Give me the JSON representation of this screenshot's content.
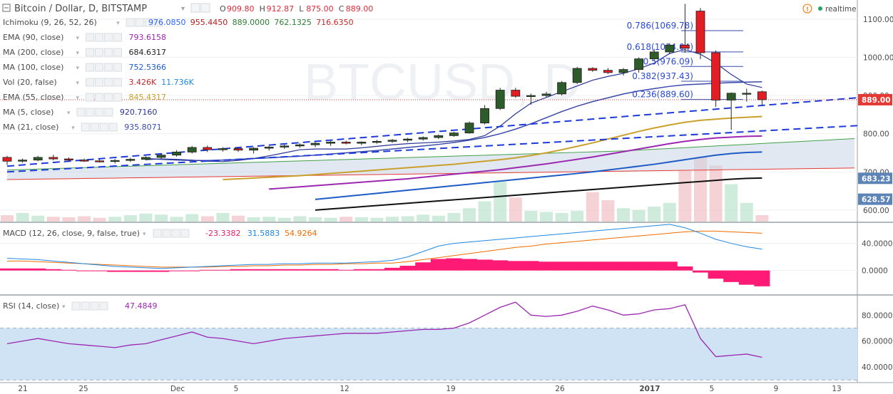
{
  "header": {
    "symbol": "Bitcoin / Dollar, D, BITSTAMP",
    "ohlc": [
      {
        "label": "O",
        "value": "909.80"
      },
      {
        "label": "H",
        "value": "912.87"
      },
      {
        "label": "L",
        "value": "875.00"
      },
      {
        "label": "C",
        "value": "889.00"
      }
    ],
    "realtime": "realtime",
    "ohlc_color": "#e0293a",
    "text_color": "#4a4a4a"
  },
  "indicators": [
    {
      "name": "Ichimoku (9, 26, 52, 26)",
      "values": [
        {
          "v": "976.0850",
          "color": "#2962ff"
        },
        {
          "v": "955.4450",
          "color": "#b71c1c"
        },
        {
          "v": "889.0000",
          "color": "#2e7d32"
        },
        {
          "v": "762.1325",
          "color": "#2e7d32"
        },
        {
          "v": "716.6350",
          "color": "#c62828"
        }
      ]
    },
    {
      "name": "EMA (90, close)",
      "values": [
        {
          "v": "793.6158",
          "color": "#9c27b0"
        }
      ]
    },
    {
      "name": "MA (200, close)",
      "values": [
        {
          "v": "684.6317",
          "color": "#222222"
        }
      ]
    },
    {
      "name": "MA (100, close)",
      "values": [
        {
          "v": "752.5366",
          "color": "#1e5bc6"
        }
      ]
    },
    {
      "name": "Vol (20, false)",
      "values": [
        {
          "v": "3.426K",
          "color": "#c62828"
        },
        {
          "v": "11.736K",
          "color": "#1e88e5"
        }
      ]
    },
    {
      "name": "EMA (55, close)",
      "values": [
        {
          "v": "845.4317",
          "color": "#c9a02a"
        }
      ]
    },
    {
      "name": "MA (5, close)",
      "values": [
        {
          "v": "920.7160",
          "color": "#283593"
        }
      ]
    },
    {
      "name": "MA (21, close)",
      "values": [
        {
          "v": "935.8071",
          "color": "#3949ab"
        }
      ]
    }
  ],
  "price_badges": [
    {
      "text": "889.00",
      "color": "#e53935"
    },
    {
      "text": "683.23",
      "color": "#5c84b6"
    },
    {
      "text": "628.57",
      "color": "#5c84b6"
    }
  ],
  "macd_legend": {
    "name": "MACD (12, 26, close, 9, false, true)",
    "values": [
      {
        "v": "-23.3382",
        "color": "#e91e63"
      },
      {
        "v": "31.5883",
        "color": "#1e88e5"
      },
      {
        "v": "54.9264",
        "color": "#ef6c00"
      }
    ]
  },
  "rsi_legend": {
    "name": "RSI (14, close)",
    "values": [
      {
        "v": "47.4849",
        "color": "#9c27b0"
      }
    ]
  },
  "watermark": "BTCUSD, D",
  "chart_data": {
    "type": "candlestick",
    "title": "Bitcoin / Dollar, D, BITSTAMP",
    "price_axis": [
      1100,
      1000,
      900,
      800,
      700,
      600
    ],
    "price_axis_labels": [
      "1100.00",
      "1000.00",
      "900.00",
      "800.00",
      "700.00",
      "600.00"
    ],
    "ylim": [
      570,
      1150
    ],
    "date_labels": [
      "21",
      "25",
      "Dec",
      "5",
      "12",
      "19",
      "26",
      "2017",
      "5",
      "9",
      "13"
    ],
    "candles": [
      [
        738,
        742,
        718,
        728
      ],
      [
        728,
        735,
        724,
        731
      ],
      [
        731,
        742,
        728,
        738
      ],
      [
        738,
        745,
        730,
        734
      ],
      [
        734,
        738,
        728,
        731
      ],
      [
        731,
        735,
        726,
        729
      ],
      [
        729,
        733,
        725,
        728
      ],
      [
        728,
        734,
        722,
        730
      ],
      [
        730,
        737,
        726,
        733
      ],
      [
        733,
        741,
        730,
        738
      ],
      [
        738,
        748,
        734,
        744
      ],
      [
        744,
        757,
        740,
        752
      ],
      [
        752,
        768,
        748,
        764
      ],
      [
        764,
        769,
        752,
        758
      ],
      [
        758,
        765,
        753,
        761
      ],
      [
        761,
        764,
        752,
        757
      ],
      [
        757,
        765,
        748,
        762
      ],
      [
        762,
        768,
        756,
        765
      ],
      [
        765,
        772,
        760,
        768
      ],
      [
        768,
        775,
        763,
        771
      ],
      [
        771,
        778,
        765,
        775
      ],
      [
        775,
        781,
        768,
        778
      ],
      [
        778,
        782,
        772,
        775
      ],
      [
        775,
        780,
        770,
        778
      ],
      [
        778,
        784,
        774,
        780
      ],
      [
        780,
        786,
        776,
        783
      ],
      [
        783,
        789,
        778,
        786
      ],
      [
        786,
        793,
        782,
        790
      ],
      [
        790,
        798,
        786,
        795
      ],
      [
        795,
        805,
        792,
        802
      ],
      [
        802,
        832,
        800,
        828
      ],
      [
        828,
        875,
        824,
        866
      ],
      [
        866,
        920,
        862,
        914
      ],
      [
        914,
        920,
        894,
        898
      ],
      [
        898,
        905,
        876,
        900
      ],
      [
        900,
        910,
        896,
        904
      ],
      [
        904,
        938,
        900,
        934
      ],
      [
        934,
        975,
        930,
        971
      ],
      [
        971,
        974,
        962,
        966
      ],
      [
        966,
        972,
        956,
        960
      ],
      [
        960,
        972,
        952,
        968
      ],
      [
        968,
        1000,
        960,
        996
      ],
      [
        996,
        1022,
        990,
        1014
      ],
      [
        1014,
        1037,
        1008,
        1032
      ],
      [
        1032,
        1140,
        1012,
        1024
      ],
      [
        1121,
        1129,
        995,
        1012
      ],
      [
        1012,
        1018,
        870,
        888
      ],
      [
        888,
        908,
        810,
        906
      ],
      [
        906,
        918,
        884,
        906
      ],
      [
        909.8,
        912.87,
        875,
        889
      ]
    ],
    "ma5": [
      732,
      734,
      733,
      731,
      728,
      727,
      730,
      735,
      742,
      750,
      758,
      760,
      760,
      760,
      763,
      767,
      771,
      774,
      776,
      778,
      781,
      785,
      795,
      820,
      852,
      880,
      895,
      910,
      925,
      940,
      950,
      958,
      970,
      985,
      1010,
      1020,
      1008,
      985,
      955,
      930,
      921
    ],
    "ma21": [
      735,
      733,
      731,
      730,
      730,
      731,
      733,
      735,
      737,
      739,
      741,
      744,
      747,
      750,
      753,
      756,
      760,
      764,
      768,
      772,
      777,
      783,
      790,
      800,
      812,
      826,
      842,
      858,
      872,
      884,
      894,
      904,
      912,
      918,
      924,
      928,
      930,
      932,
      934,
      935,
      936
    ],
    "ema55": [
      680,
      682,
      684,
      686,
      688,
      690,
      693,
      696,
      699,
      702,
      705,
      708,
      711,
      714,
      717,
      720,
      724,
      728,
      732,
      737,
      743,
      750,
      758,
      767,
      776,
      786,
      796,
      806,
      815,
      823,
      830,
      835,
      838,
      841,
      843,
      845
    ],
    "ema90": [
      655,
      658,
      661,
      664,
      667,
      670,
      673,
      676,
      679,
      682,
      686,
      690,
      694,
      698,
      702,
      706,
      711,
      716,
      721,
      727,
      733,
      739,
      746,
      753,
      760,
      767,
      774,
      780,
      785,
      789,
      791,
      793,
      794
    ],
    "ma100": [
      628,
      632,
      636,
      640,
      644,
      648,
      652,
      656,
      660,
      664,
      668,
      672,
      676,
      680,
      684,
      688,
      692,
      696,
      700,
      705,
      710,
      715,
      720,
      726,
      732,
      738,
      744,
      748,
      751,
      752
    ],
    "ma200": [
      600,
      603,
      606,
      609,
      612,
      615,
      618,
      621,
      624,
      627,
      630,
      633,
      636,
      639,
      642,
      645,
      648,
      651,
      654,
      657,
      660,
      663,
      666,
      669,
      672,
      675,
      678,
      681,
      683,
      684
    ],
    "trendlines": [
      {
        "from": [
          0,
          700
        ],
        "to": [
          57,
          825
        ]
      },
      {
        "from": [
          0,
          715
        ],
        "to": [
          57,
          900
        ]
      }
    ],
    "fibonacci": [
      {
        "label": "0.786(1069.78)",
        "price": 1069.78
      },
      {
        "label": "0.618(1014.04)",
        "price": 1014.04
      },
      {
        "label": "0.5(976.09)",
        "price": 976.09
      },
      {
        "label": "0.382(937.43)",
        "price": 937.43
      },
      {
        "label": "0.236(889.60)",
        "price": 889.6
      }
    ],
    "volume": [
      1.2,
      1.6,
      1.1,
      0.9,
      0.8,
      1.0,
      0.7,
      0.9,
      1.2,
      1.5,
      1.3,
      0.9,
      1.4,
      1.0,
      1.6,
      1.1,
      0.8,
      0.9,
      0.7,
      1.0,
      0.8,
      0.7,
      0.9,
      0.8,
      0.7,
      0.9,
      1.0,
      1.3,
      1.1,
      1.6,
      2.5,
      3.8,
      7.5,
      4.5,
      2.0,
      1.8,
      1.6,
      2.0,
      5.5,
      4.0,
      2.5,
      2.2,
      2.8,
      3.5,
      9.5,
      12.0,
      10.5,
      7.0,
      3.5,
      1.2
    ],
    "macd": {
      "ylim": [
        -35,
        70
      ],
      "axis": [
        40,
        0
      ],
      "axis_labels": [
        "40.0000",
        "0.0000"
      ],
      "macd_line": [
        18,
        17,
        16,
        14,
        12,
        10,
        8,
        6,
        5,
        4,
        3,
        4,
        5,
        6,
        7,
        8,
        9,
        9,
        10,
        10,
        11,
        11,
        11,
        12,
        13,
        15,
        20,
        28,
        36,
        40,
        42,
        44,
        46,
        48,
        50,
        52,
        54,
        56,
        58,
        60,
        62,
        64,
        66,
        68,
        63,
        55,
        46,
        40,
        35,
        31.6
      ],
      "signal_line": [
        14,
        14,
        13,
        12,
        11,
        10,
        9,
        8,
        7,
        6,
        5,
        5,
        5,
        5,
        6,
        6,
        7,
        7,
        8,
        8,
        9,
        9,
        10,
        10,
        11,
        11,
        13,
        16,
        19,
        22,
        25,
        28,
        31,
        34,
        36,
        39,
        41,
        43,
        45,
        47,
        49,
        51,
        53,
        55,
        57,
        58,
        58,
        57,
        56,
        54.9
      ],
      "histogram": [
        3,
        3,
        3,
        2,
        1,
        0,
        -1,
        -2,
        -2,
        -2,
        -2,
        -1,
        0,
        1,
        1,
        2,
        2,
        2,
        2,
        2,
        2,
        2,
        1,
        2,
        2,
        4,
        7,
        12,
        17,
        18,
        17,
        16,
        15,
        14,
        14,
        13,
        13,
        13,
        13,
        13,
        13,
        13,
        13,
        13,
        6,
        -3,
        -12,
        -17,
        -21,
        -23.3
      ]
    },
    "rsi": {
      "ylim": [
        28,
        95
      ],
      "axis": [
        80,
        60,
        40
      ],
      "axis_labels": [
        "80.0000",
        "60.0000",
        "40.0000"
      ],
      "band": [
        30,
        70
      ],
      "values": [
        58,
        60,
        62,
        60,
        58,
        57,
        56,
        55,
        57,
        58,
        61,
        64,
        67,
        63,
        62,
        60,
        58,
        60,
        62,
        63,
        64,
        65,
        66,
        66,
        66,
        67,
        68,
        69,
        69,
        70,
        74,
        80,
        86,
        90,
        80,
        79,
        80,
        83,
        87,
        84,
        80,
        81,
        84,
        85,
        88,
        62,
        48,
        49,
        50,
        47.5
      ]
    }
  }
}
